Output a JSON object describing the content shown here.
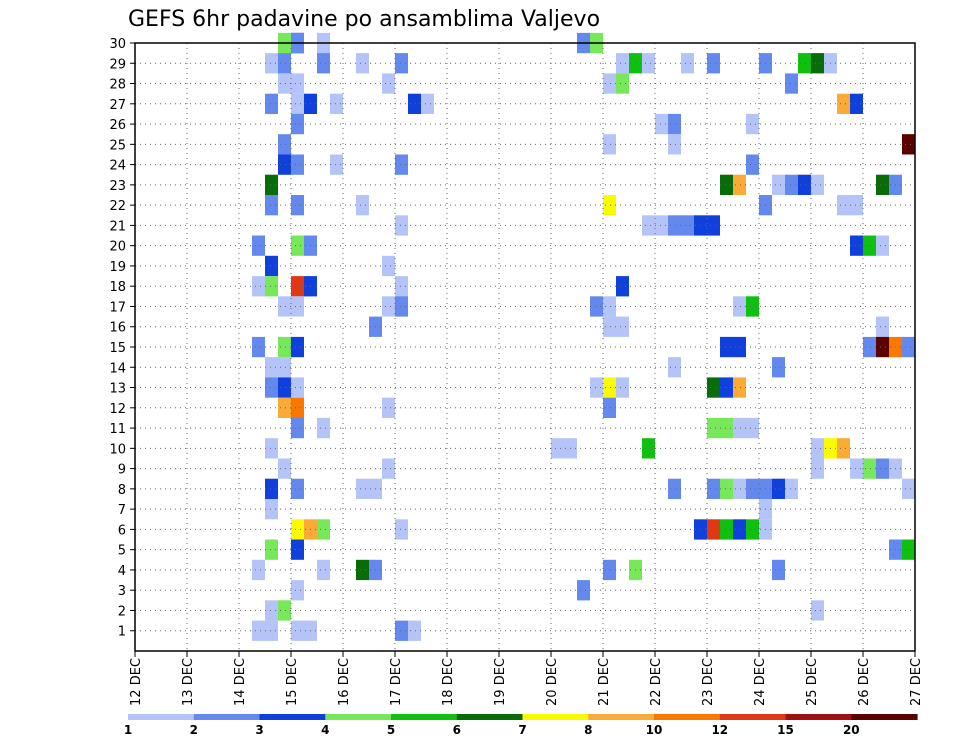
{
  "chart_data": {
    "type": "heatmap",
    "title": "GEFS 6hr padavine po ansamblima Valjevo",
    "xlabel": "",
    "ylabel": "",
    "x_ticks": [
      "12 DEC",
      "13 DEC",
      "14 DEC",
      "15 DEC",
      "16 DEC",
      "17 DEC",
      "18 DEC",
      "19 DEC",
      "20 DEC",
      "21 DEC",
      "22 DEC",
      "23 DEC",
      "24 DEC",
      "25 DEC",
      "26 DEC",
      "27 DEC"
    ],
    "xlim": [
      0,
      15
    ],
    "ylim": [
      0,
      30
    ],
    "y_ticks": [
      1,
      2,
      3,
      4,
      5,
      6,
      7,
      8,
      9,
      10,
      11,
      12,
      13,
      14,
      15,
      16,
      17,
      18,
      19,
      20,
      21,
      22,
      23,
      24,
      25,
      26,
      27,
      28,
      29,
      30
    ],
    "grid": true,
    "colorbar": {
      "labels": [
        "1",
        "2",
        "3",
        "4",
        "5",
        "6",
        "7",
        "8",
        "10",
        "12",
        "15",
        "20"
      ],
      "colors": [
        "#b4c4f8",
        "#6489ee",
        "#1040dc",
        "#76e85a",
        "#10c010",
        "#086c08",
        "#fafa00",
        "#faaa36",
        "#fa7800",
        "#e03814",
        "#a01010",
        "#5c0000"
      ]
    },
    "cells": [
      {
        "x": 3.0,
        "y": 30,
        "c": 3
      },
      {
        "x": 3.0,
        "y": 30,
        "c": 2
      },
      {
        "x": 2.75,
        "y": 30,
        "c": 4
      },
      {
        "x": 3.0,
        "y": 30,
        "c": 2
      },
      {
        "x": 3.5,
        "y": 30,
        "c": 1
      },
      {
        "x": 8.5,
        "y": 30,
        "c": 2
      },
      {
        "x": 8.75,
        "y": 30,
        "c": 4
      },
      {
        "x": 2.5,
        "y": 29,
        "c": 1
      },
      {
        "x": 2.75,
        "y": 29,
        "c": 2
      },
      {
        "x": 3.5,
        "y": 29,
        "c": 2
      },
      {
        "x": 4.25,
        "y": 29,
        "c": 1
      },
      {
        "x": 5.0,
        "y": 29,
        "c": 2
      },
      {
        "x": 9.25,
        "y": 29,
        "c": 1
      },
      {
        "x": 9.5,
        "y": 29,
        "c": 5
      },
      {
        "x": 9.75,
        "y": 29,
        "c": 1
      },
      {
        "x": 10.5,
        "y": 29,
        "c": 1
      },
      {
        "x": 11.0,
        "y": 29,
        "c": 2
      },
      {
        "x": 12.0,
        "y": 29,
        "c": 2
      },
      {
        "x": 12.75,
        "y": 29,
        "c": 5
      },
      {
        "x": 13.0,
        "y": 29,
        "c": 6
      },
      {
        "x": 13.25,
        "y": 29,
        "c": 1
      },
      {
        "x": 2.75,
        "y": 28,
        "c": 1
      },
      {
        "x": 3.0,
        "y": 28,
        "c": 1
      },
      {
        "x": 4.75,
        "y": 28,
        "c": 1
      },
      {
        "x": 9.0,
        "y": 28,
        "c": 1
      },
      {
        "x": 9.25,
        "y": 28,
        "c": 4
      },
      {
        "x": 12.5,
        "y": 28,
        "c": 2
      },
      {
        "x": 2.5,
        "y": 27,
        "c": 2
      },
      {
        "x": 3.0,
        "y": 27,
        "c": 1
      },
      {
        "x": 3.25,
        "y": 27,
        "c": 3
      },
      {
        "x": 3.75,
        "y": 27,
        "c": 1
      },
      {
        "x": 5.25,
        "y": 27,
        "c": 3
      },
      {
        "x": 5.5,
        "y": 27,
        "c": 1
      },
      {
        "x": 13.5,
        "y": 27,
        "c": 8
      },
      {
        "x": 13.75,
        "y": 27,
        "c": 3
      },
      {
        "x": 3.0,
        "y": 26,
        "c": 2
      },
      {
        "x": 10.0,
        "y": 26,
        "c": 1
      },
      {
        "x": 10.25,
        "y": 26,
        "c": 2
      },
      {
        "x": 11.75,
        "y": 26,
        "c": 1
      },
      {
        "x": 2.75,
        "y": 25,
        "c": 2
      },
      {
        "x": 9.0,
        "y": 25,
        "c": 1
      },
      {
        "x": 10.25,
        "y": 25,
        "c": 1
      },
      {
        "x": 14.75,
        "y": 25,
        "c": 7
      },
      {
        "x": 14.95,
        "y": 25,
        "c": 12
      },
      {
        "x": 2.75,
        "y": 24,
        "c": 3
      },
      {
        "x": 3.0,
        "y": 24,
        "c": 2
      },
      {
        "x": 3.75,
        "y": 24,
        "c": 1
      },
      {
        "x": 5.0,
        "y": 24,
        "c": 2
      },
      {
        "x": 11.75,
        "y": 24,
        "c": 2
      },
      {
        "x": 2.5,
        "y": 23,
        "c": 6
      },
      {
        "x": 11.25,
        "y": 23,
        "c": 6
      },
      {
        "x": 11.5,
        "y": 23,
        "c": 8
      },
      {
        "x": 12.25,
        "y": 23,
        "c": 1
      },
      {
        "x": 12.5,
        "y": 23,
        "c": 2
      },
      {
        "x": 12.75,
        "y": 23,
        "c": 3
      },
      {
        "x": 13.0,
        "y": 23,
        "c": 1
      },
      {
        "x": 14.25,
        "y": 23,
        "c": 6
      },
      {
        "x": 14.5,
        "y": 23,
        "c": 2
      },
      {
        "x": 2.5,
        "y": 22,
        "c": 2
      },
      {
        "x": 3.0,
        "y": 22,
        "c": 2
      },
      {
        "x": 4.25,
        "y": 22,
        "c": 1
      },
      {
        "x": 9.0,
        "y": 22,
        "c": 7
      },
      {
        "x": 12.0,
        "y": 22,
        "c": 2
      },
      {
        "x": 13.5,
        "y": 22,
        "c": 1
      },
      {
        "x": 13.75,
        "y": 22,
        "c": 1
      },
      {
        "x": 5.0,
        "y": 21,
        "c": 1
      },
      {
        "x": 9.75,
        "y": 21,
        "c": 1
      },
      {
        "x": 10.0,
        "y": 21,
        "c": 1
      },
      {
        "x": 10.25,
        "y": 21,
        "c": 2
      },
      {
        "x": 10.5,
        "y": 21,
        "c": 2
      },
      {
        "x": 10.75,
        "y": 21,
        "c": 3
      },
      {
        "x": 11.0,
        "y": 21,
        "c": 3
      },
      {
        "x": 2.25,
        "y": 20,
        "c": 2
      },
      {
        "x": 3.0,
        "y": 20,
        "c": 4
      },
      {
        "x": 3.25,
        "y": 20,
        "c": 2
      },
      {
        "x": 13.75,
        "y": 20,
        "c": 3
      },
      {
        "x": 14.0,
        "y": 20,
        "c": 5
      },
      {
        "x": 14.25,
        "y": 20,
        "c": 1
      },
      {
        "x": 2.5,
        "y": 19,
        "c": 3
      },
      {
        "x": 4.75,
        "y": 19,
        "c": 1
      },
      {
        "x": 2.25,
        "y": 18,
        "c": 1
      },
      {
        "x": 2.5,
        "y": 18,
        "c": 4
      },
      {
        "x": 3.0,
        "y": 18,
        "c": 10
      },
      {
        "x": 3.25,
        "y": 18,
        "c": 3
      },
      {
        "x": 5.0,
        "y": 18,
        "c": 1
      },
      {
        "x": 9.25,
        "y": 18,
        "c": 3
      },
      {
        "x": 2.75,
        "y": 17,
        "c": 1
      },
      {
        "x": 3.0,
        "y": 17,
        "c": 1
      },
      {
        "x": 4.75,
        "y": 17,
        "c": 1
      },
      {
        "x": 5.0,
        "y": 17,
        "c": 2
      },
      {
        "x": 8.75,
        "y": 17,
        "c": 2
      },
      {
        "x": 9.0,
        "y": 17,
        "c": 1
      },
      {
        "x": 11.5,
        "y": 17,
        "c": 1
      },
      {
        "x": 11.75,
        "y": 17,
        "c": 5
      },
      {
        "x": 4.5,
        "y": 16,
        "c": 2
      },
      {
        "x": 9.0,
        "y": 16,
        "c": 1
      },
      {
        "x": 9.25,
        "y": 16,
        "c": 1
      },
      {
        "x": 14.25,
        "y": 16,
        "c": 1
      },
      {
        "x": 2.25,
        "y": 15,
        "c": 2
      },
      {
        "x": 2.75,
        "y": 15,
        "c": 4
      },
      {
        "x": 3.0,
        "y": 15,
        "c": 3
      },
      {
        "x": 11.25,
        "y": 15,
        "c": 3
      },
      {
        "x": 11.5,
        "y": 15,
        "c": 3
      },
      {
        "x": 14.0,
        "y": 15,
        "c": 2
      },
      {
        "x": 14.25,
        "y": 15,
        "c": 12
      },
      {
        "x": 14.5,
        "y": 15,
        "c": 9
      },
      {
        "x": 14.75,
        "y": 15,
        "c": 2
      },
      {
        "x": 2.5,
        "y": 14,
        "c": 1
      },
      {
        "x": 2.75,
        "y": 14,
        "c": 1
      },
      {
        "x": 10.25,
        "y": 14,
        "c": 1
      },
      {
        "x": 12.25,
        "y": 14,
        "c": 2
      },
      {
        "x": 2.5,
        "y": 13,
        "c": 2
      },
      {
        "x": 2.75,
        "y": 13,
        "c": 3
      },
      {
        "x": 3.0,
        "y": 13,
        "c": 1
      },
      {
        "x": 8.75,
        "y": 13,
        "c": 1
      },
      {
        "x": 9.0,
        "y": 13,
        "c": 7
      },
      {
        "x": 9.25,
        "y": 13,
        "c": 1
      },
      {
        "x": 11.0,
        "y": 13,
        "c": 6
      },
      {
        "x": 11.25,
        "y": 13,
        "c": 3
      },
      {
        "x": 11.5,
        "y": 13,
        "c": 8
      },
      {
        "x": 2.75,
        "y": 12,
        "c": 8
      },
      {
        "x": 3.0,
        "y": 12,
        "c": 9
      },
      {
        "x": 4.75,
        "y": 12,
        "c": 1
      },
      {
        "x": 9.0,
        "y": 12,
        "c": 2
      },
      {
        "x": 3.0,
        "y": 11,
        "c": 2
      },
      {
        "x": 3.5,
        "y": 11,
        "c": 1
      },
      {
        "x": 11.0,
        "y": 11,
        "c": 4
      },
      {
        "x": 11.25,
        "y": 11,
        "c": 4
      },
      {
        "x": 11.5,
        "y": 11,
        "c": 1
      },
      {
        "x": 11.75,
        "y": 11,
        "c": 1
      },
      {
        "x": 2.5,
        "y": 10,
        "c": 1
      },
      {
        "x": 8.0,
        "y": 10,
        "c": 1
      },
      {
        "x": 8.25,
        "y": 10,
        "c": 1
      },
      {
        "x": 9.75,
        "y": 10,
        "c": 5
      },
      {
        "x": 13.0,
        "y": 10,
        "c": 1
      },
      {
        "x": 13.25,
        "y": 10,
        "c": 7
      },
      {
        "x": 13.5,
        "y": 10,
        "c": 8
      },
      {
        "x": 2.75,
        "y": 9,
        "c": 1
      },
      {
        "x": 4.75,
        "y": 9,
        "c": 1
      },
      {
        "x": 13.0,
        "y": 9,
        "c": 1
      },
      {
        "x": 13.75,
        "y": 9,
        "c": 1
      },
      {
        "x": 14.0,
        "y": 9,
        "c": 4
      },
      {
        "x": 14.25,
        "y": 9,
        "c": 2
      },
      {
        "x": 14.5,
        "y": 9,
        "c": 1
      },
      {
        "x": 2.5,
        "y": 8,
        "c": 3
      },
      {
        "x": 3.0,
        "y": 8,
        "c": 2
      },
      {
        "x": 4.25,
        "y": 8,
        "c": 1
      },
      {
        "x": 4.5,
        "y": 8,
        "c": 1
      },
      {
        "x": 10.25,
        "y": 8,
        "c": 2
      },
      {
        "x": 11.0,
        "y": 8,
        "c": 2
      },
      {
        "x": 11.25,
        "y": 8,
        "c": 4
      },
      {
        "x": 11.5,
        "y": 8,
        "c": 1
      },
      {
        "x": 11.75,
        "y": 8,
        "c": 2
      },
      {
        "x": 12.0,
        "y": 8,
        "c": 2
      },
      {
        "x": 12.25,
        "y": 8,
        "c": 3
      },
      {
        "x": 12.5,
        "y": 8,
        "c": 1
      },
      {
        "x": 14.95,
        "y": 8,
        "c": 1
      },
      {
        "x": 2.5,
        "y": 7,
        "c": 1
      },
      {
        "x": 12.0,
        "y": 7,
        "c": 1
      },
      {
        "x": 3.0,
        "y": 6,
        "c": 7
      },
      {
        "x": 3.25,
        "y": 6,
        "c": 8
      },
      {
        "x": 3.5,
        "y": 6,
        "c": 4
      },
      {
        "x": 5.0,
        "y": 6,
        "c": 1
      },
      {
        "x": 10.75,
        "y": 6,
        "c": 3
      },
      {
        "x": 11.0,
        "y": 6,
        "c": 10
      },
      {
        "x": 11.25,
        "y": 6,
        "c": 5
      },
      {
        "x": 11.5,
        "y": 6,
        "c": 3
      },
      {
        "x": 11.75,
        "y": 6,
        "c": 5
      },
      {
        "x": 12.0,
        "y": 6,
        "c": 1
      },
      {
        "x": 2.5,
        "y": 5,
        "c": 4
      },
      {
        "x": 3.0,
        "y": 5,
        "c": 3
      },
      {
        "x": 14.5,
        "y": 5,
        "c": 2
      },
      {
        "x": 14.75,
        "y": 5,
        "c": 5
      },
      {
        "x": 2.25,
        "y": 4,
        "c": 1
      },
      {
        "x": 3.5,
        "y": 4,
        "c": 1
      },
      {
        "x": 4.25,
        "y": 4,
        "c": 6
      },
      {
        "x": 4.5,
        "y": 4,
        "c": 2
      },
      {
        "x": 9.0,
        "y": 4,
        "c": 2
      },
      {
        "x": 9.5,
        "y": 4,
        "c": 4
      },
      {
        "x": 12.25,
        "y": 4,
        "c": 2
      },
      {
        "x": 3.0,
        "y": 3,
        "c": 1
      },
      {
        "x": 8.5,
        "y": 3,
        "c": 2
      },
      {
        "x": 2.5,
        "y": 2,
        "c": 1
      },
      {
        "x": 2.75,
        "y": 2,
        "c": 4
      },
      {
        "x": 13.0,
        "y": 2,
        "c": 1
      },
      {
        "x": 2.25,
        "y": 1,
        "c": 1
      },
      {
        "x": 2.5,
        "y": 1,
        "c": 1
      },
      {
        "x": 3.0,
        "y": 1,
        "c": 1
      },
      {
        "x": 3.25,
        "y": 1,
        "c": 1
      },
      {
        "x": 5.0,
        "y": 1,
        "c": 2
      },
      {
        "x": 5.25,
        "y": 1,
        "c": 1
      }
    ]
  }
}
